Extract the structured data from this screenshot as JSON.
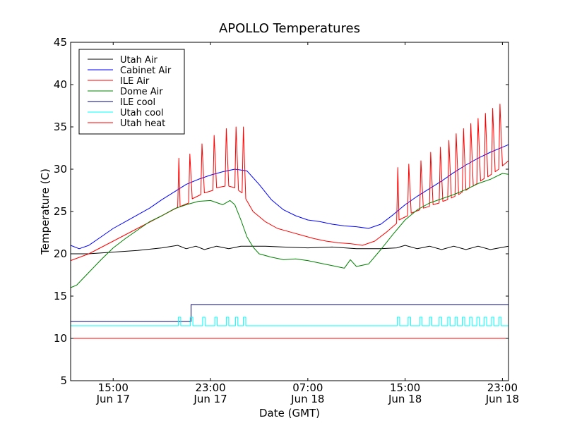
{
  "chart_data": {
    "type": "line",
    "title": "APOLLO Temperatures",
    "xlabel": "Date (GMT)",
    "ylabel": "Temperature (C)",
    "xlim": [
      11.5,
      47.5
    ],
    "ylim": [
      5,
      45
    ],
    "grid": false,
    "legend_position": "top-left",
    "y_ticks": [
      5,
      10,
      15,
      20,
      25,
      30,
      35,
      40,
      45
    ],
    "x_ticks": [
      {
        "x": 15,
        "time": "15:00",
        "date": "Jun 17"
      },
      {
        "x": 23,
        "time": "23:00",
        "date": "Jun 17"
      },
      {
        "x": 31,
        "time": "07:00",
        "date": "Jun 18"
      },
      {
        "x": 39,
        "time": "15:00",
        "date": "Jun 18"
      },
      {
        "x": 47,
        "time": "23:00",
        "date": "Jun 18"
      }
    ],
    "x_unit": "hours since Jun 17 00:00 GMT",
    "series": [
      {
        "name": "Utah Air",
        "color": "#000000",
        "x": [
          11.5,
          13,
          15,
          17,
          19,
          20.3,
          21,
          21.8,
          22.5,
          23.5,
          24.5,
          25.5,
          26.5,
          27.5,
          29,
          31,
          33,
          35,
          37,
          38.3,
          39,
          40,
          41,
          42,
          43,
          44,
          45,
          46,
          47.5
        ],
        "values": [
          20.0,
          20.0,
          20.2,
          20.4,
          20.7,
          21.0,
          20.6,
          20.9,
          20.5,
          20.9,
          20.6,
          20.9,
          20.9,
          20.9,
          20.8,
          20.7,
          20.8,
          20.6,
          20.6,
          20.7,
          21.0,
          20.6,
          20.9,
          20.5,
          20.9,
          20.5,
          20.9,
          20.5,
          20.9
        ]
      },
      {
        "name": "Cabinet Air",
        "color": "#0000ff",
        "x": [
          11.5,
          12.2,
          13,
          14,
          15,
          16,
          17,
          18,
          19,
          20,
          21,
          22,
          23,
          24,
          25,
          26,
          27,
          28,
          29,
          30,
          31,
          32,
          33,
          34,
          35,
          36,
          37,
          38,
          39,
          40,
          41,
          42,
          43,
          44,
          45,
          46,
          47,
          47.5
        ],
        "values": [
          21.0,
          20.6,
          21.0,
          22.0,
          23.0,
          23.8,
          24.6,
          25.4,
          26.4,
          27.3,
          28.2,
          28.8,
          29.3,
          29.7,
          30.0,
          29.8,
          28.2,
          26.4,
          25.2,
          24.5,
          24.0,
          23.8,
          23.5,
          23.3,
          23.2,
          23.0,
          23.5,
          24.6,
          25.8,
          26.8,
          27.7,
          28.6,
          29.6,
          30.5,
          31.3,
          32.0,
          32.6,
          32.9
        ]
      },
      {
        "name": "ILE Air",
        "color": "#ff0000",
        "x": [
          11.5,
          13,
          15,
          17,
          19,
          20.3,
          20.4,
          20.5,
          21.2,
          21.3,
          21.5,
          22.2,
          22.3,
          22.5,
          23.2,
          23.3,
          23.5,
          24.2,
          24.3,
          24.5,
          25.0,
          25.1,
          25.3,
          25.6,
          25.7,
          25.9,
          26.5,
          27.5,
          28.5,
          29.5,
          30.5,
          31.5,
          32.5,
          33.5,
          34.5,
          35.5,
          36.5,
          37.5,
          38.3,
          38.4,
          38.5,
          39.2,
          39.3,
          39.5,
          40.2,
          40.3,
          40.5,
          41.0,
          41.1,
          41.3,
          41.8,
          41.9,
          42.1,
          42.5,
          42.6,
          42.8,
          43.1,
          43.2,
          43.4,
          43.7,
          43.8,
          44.0,
          44.3,
          44.4,
          44.6,
          44.9,
          45.0,
          45.2,
          45.5,
          45.6,
          45.8,
          46.1,
          46.2,
          46.4,
          46.7,
          46.8,
          47.0,
          47.5
        ],
        "values": [
          19.2,
          20.0,
          21.5,
          23.0,
          24.5,
          25.5,
          31.3,
          25.6,
          26.0,
          31.8,
          26.5,
          27.0,
          33.0,
          27.2,
          27.5,
          34.0,
          27.8,
          28.0,
          34.8,
          28.0,
          27.8,
          35.0,
          27.5,
          27.2,
          35.0,
          26.5,
          25.0,
          23.8,
          23.0,
          22.6,
          22.2,
          21.8,
          21.5,
          21.3,
          21.2,
          21.0,
          21.5,
          22.6,
          23.6,
          30.2,
          24.0,
          24.5,
          30.6,
          24.8,
          25.2,
          31.0,
          25.4,
          25.6,
          32.0,
          25.8,
          26.0,
          32.6,
          26.2,
          26.4,
          33.4,
          26.6,
          26.8,
          34.2,
          27.0,
          27.3,
          34.8,
          27.5,
          27.8,
          35.4,
          28.0,
          28.3,
          36.0,
          28.6,
          28.9,
          36.6,
          29.1,
          29.4,
          37.2,
          29.7,
          30.0,
          37.7,
          30.4,
          31.0
        ]
      },
      {
        "name": "Dome Air",
        "color": "#008000",
        "x": [
          11.5,
          12,
          13,
          14,
          15,
          16,
          17,
          18,
          19,
          20,
          21,
          22,
          23,
          24,
          24.6,
          25,
          25.5,
          26,
          26.5,
          27,
          28,
          29,
          30,
          31,
          32,
          33,
          34,
          34.5,
          35,
          36,
          37,
          38,
          39,
          40,
          41,
          42,
          43,
          44,
          45,
          46,
          47,
          47.5
        ],
        "values": [
          16.0,
          16.3,
          17.8,
          19.3,
          20.7,
          21.8,
          22.8,
          23.8,
          24.5,
          25.3,
          25.8,
          26.2,
          26.3,
          25.8,
          26.3,
          25.8,
          24.0,
          22.0,
          20.8,
          20.0,
          19.6,
          19.3,
          19.4,
          19.2,
          18.9,
          18.6,
          18.3,
          19.3,
          18.5,
          18.8,
          20.5,
          22.3,
          24.0,
          25.2,
          26.0,
          26.5,
          27.0,
          27.6,
          28.3,
          28.8,
          29.5,
          29.4
        ]
      },
      {
        "name": "ILE cool",
        "color": "#000080",
        "x": [
          11.5,
          21.4,
          21.4,
          47.5
        ],
        "values": [
          12.0,
          12.0,
          14.0,
          14.0
        ]
      },
      {
        "name": "Utah cool",
        "color": "#00ffff",
        "x": [
          11.5,
          20.35,
          20.35,
          20.55,
          20.55,
          21.35,
          21.35,
          21.55,
          21.55,
          22.35,
          22.35,
          22.55,
          22.55,
          23.35,
          23.35,
          23.55,
          23.55,
          24.3,
          24.3,
          24.5,
          24.5,
          25.05,
          25.05,
          25.25,
          25.25,
          25.7,
          25.7,
          25.9,
          25.9,
          38.35,
          38.35,
          38.55,
          38.55,
          39.25,
          39.25,
          39.45,
          39.45,
          40.2,
          40.2,
          40.4,
          40.4,
          41.0,
          41.0,
          41.2,
          41.2,
          41.8,
          41.8,
          42.0,
          42.0,
          42.5,
          42.5,
          42.7,
          42.7,
          43.1,
          43.1,
          43.3,
          43.3,
          43.7,
          43.7,
          43.9,
          43.9,
          44.3,
          44.3,
          44.5,
          44.5,
          44.9,
          44.9,
          45.1,
          45.1,
          45.5,
          45.5,
          45.7,
          45.7,
          46.1,
          46.1,
          46.3,
          46.3,
          46.7,
          46.7,
          46.9,
          46.9,
          47.5
        ],
        "values": [
          11.5,
          11.5,
          12.5,
          12.5,
          11.5,
          11.5,
          12.5,
          12.5,
          11.5,
          11.5,
          12.5,
          12.5,
          11.5,
          11.5,
          12.5,
          12.5,
          11.5,
          11.5,
          12.5,
          12.5,
          11.5,
          11.5,
          12.5,
          12.5,
          11.5,
          11.5,
          12.5,
          12.5,
          11.5,
          11.5,
          12.5,
          12.5,
          11.5,
          11.5,
          12.5,
          12.5,
          11.5,
          11.5,
          12.5,
          12.5,
          11.5,
          11.5,
          12.5,
          12.5,
          11.5,
          11.5,
          12.5,
          12.5,
          11.5,
          11.5,
          12.5,
          12.5,
          11.5,
          11.5,
          12.5,
          12.5,
          11.5,
          11.5,
          12.5,
          12.5,
          11.5,
          11.5,
          12.5,
          12.5,
          11.5,
          11.5,
          12.5,
          12.5,
          11.5,
          11.5,
          12.5,
          12.5,
          11.5,
          11.5,
          12.5,
          12.5,
          11.5,
          11.5,
          12.5,
          12.5,
          11.5,
          11.5
        ]
      },
      {
        "name": "Utah heat",
        "color": "#ff0000",
        "x": [
          11.5,
          47.5
        ],
        "values": [
          10.0,
          10.0
        ]
      }
    ]
  }
}
